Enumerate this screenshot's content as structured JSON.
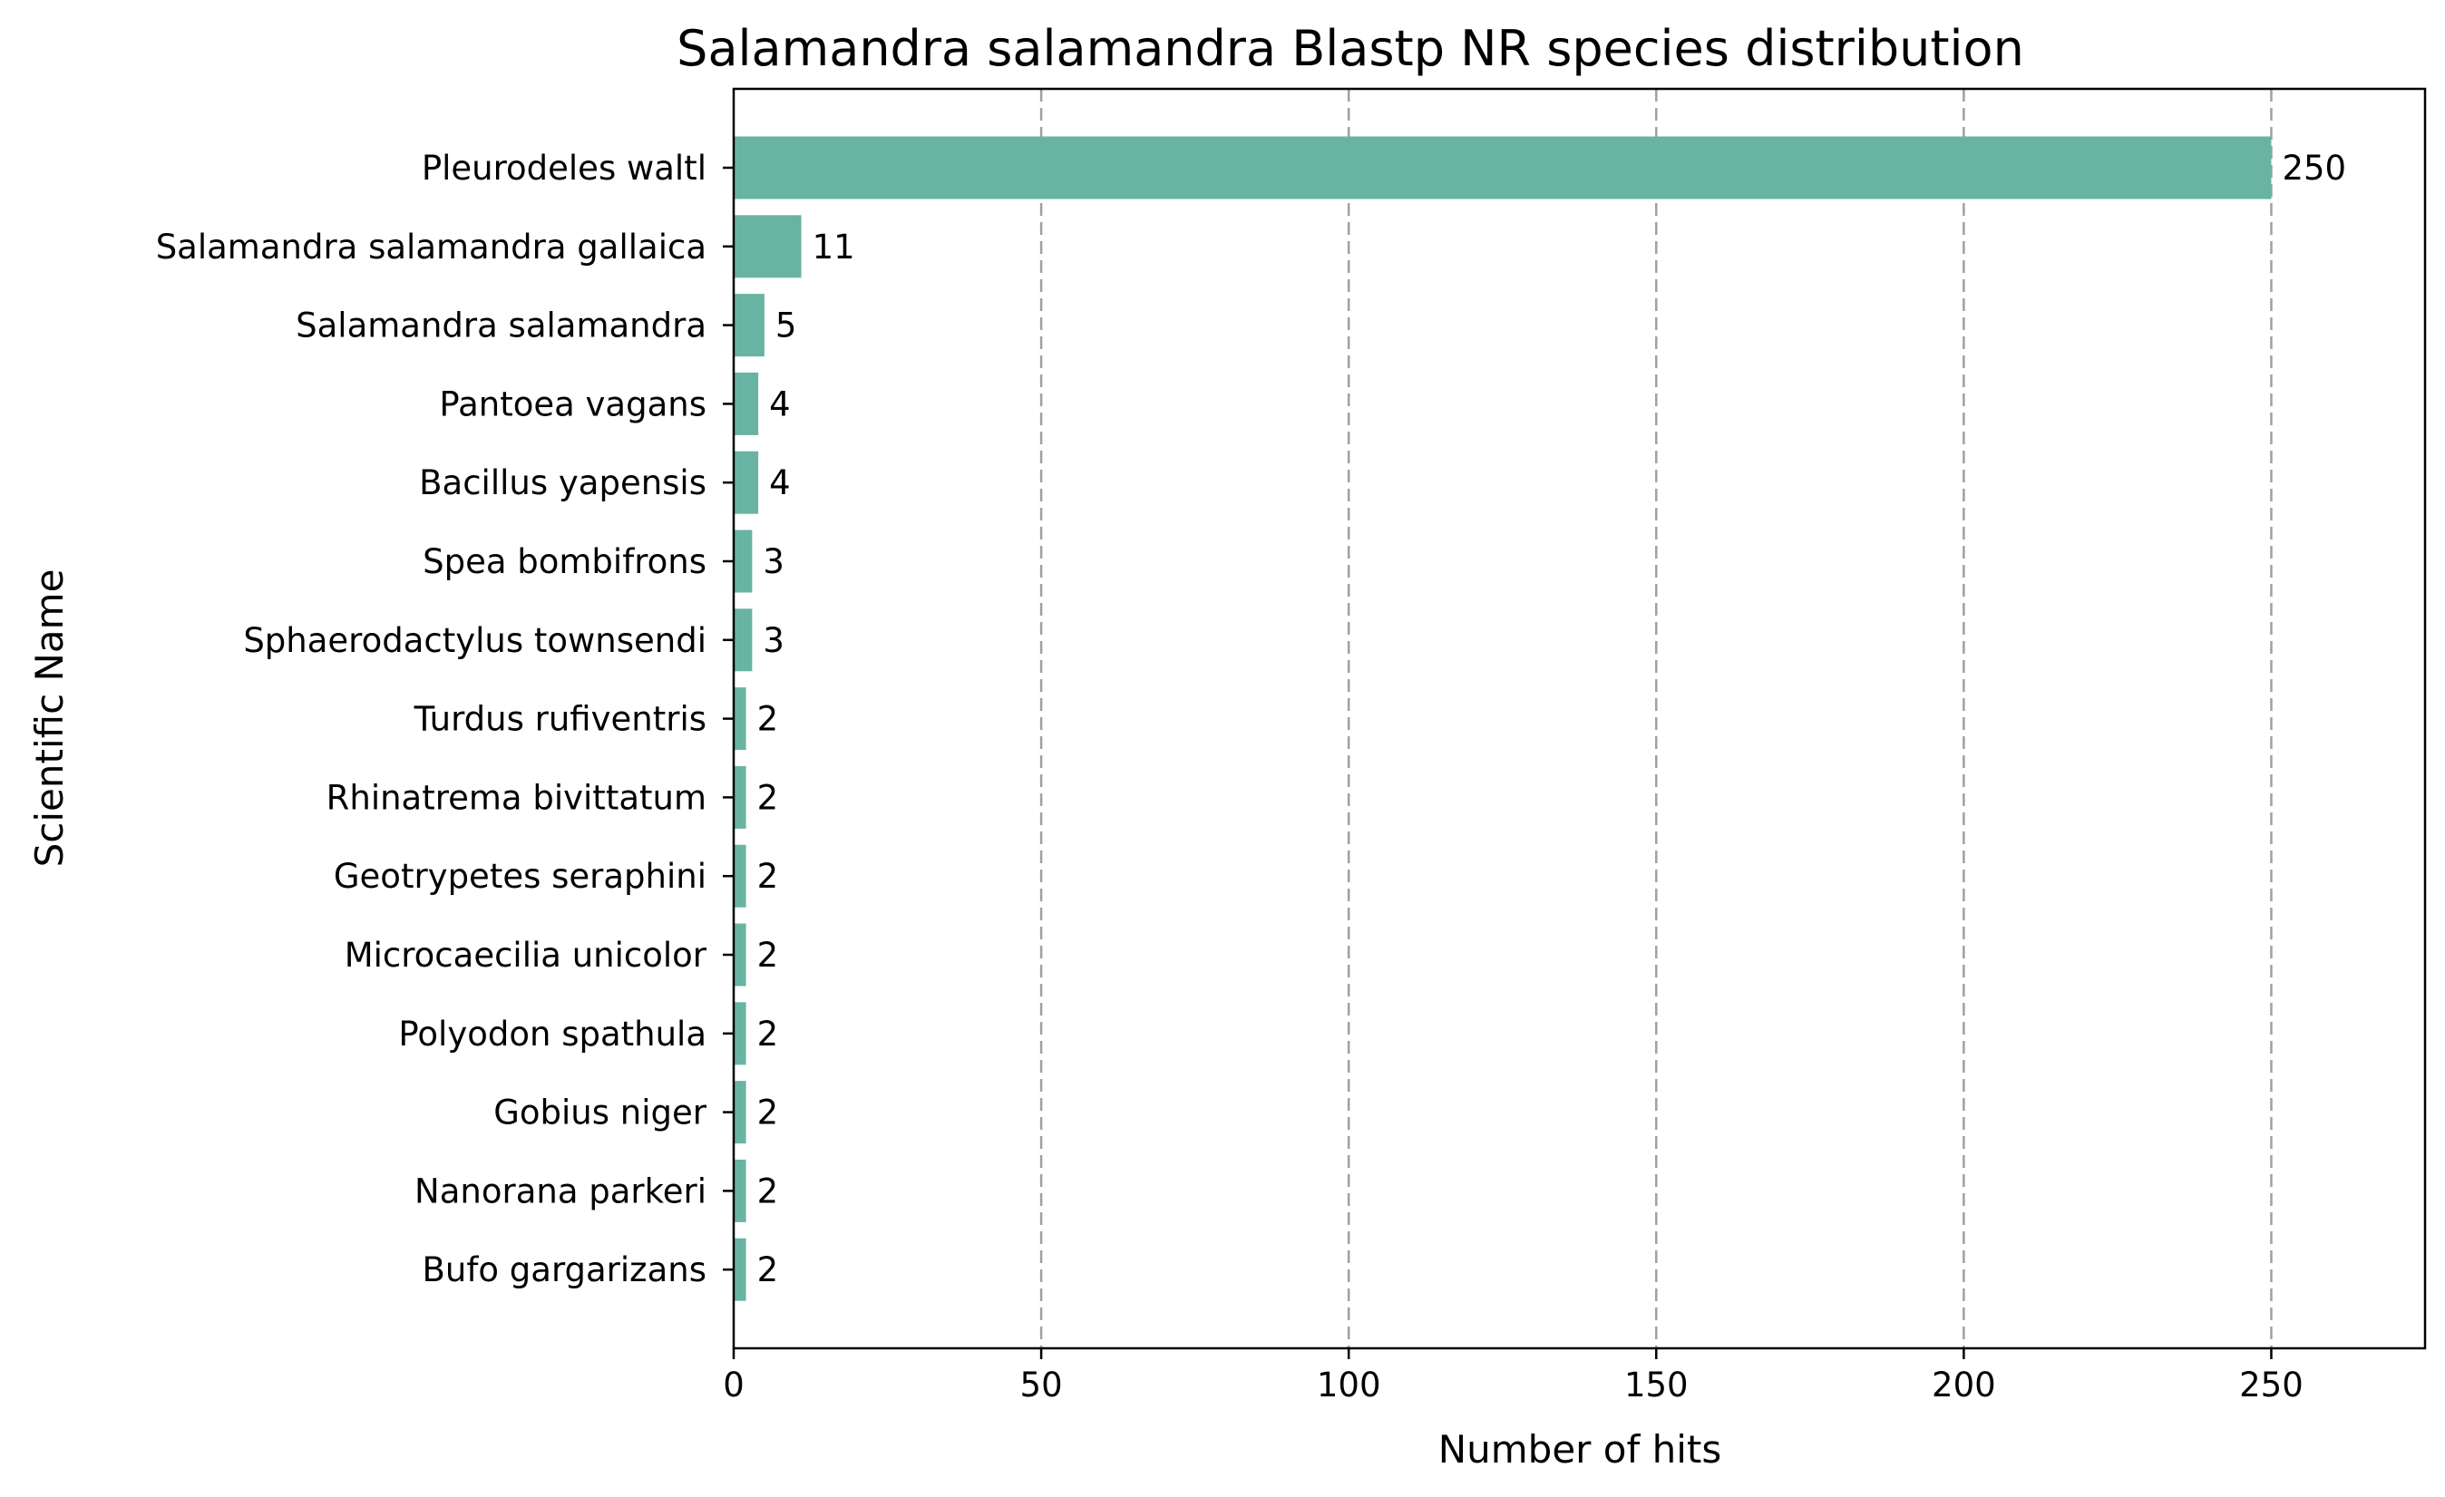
{
  "chart_data": {
    "type": "bar",
    "orientation": "horizontal",
    "title": "Salamandra salamandra Blastp NR species distribution",
    "xlabel": "Number of hits",
    "ylabel": "Scientific Name",
    "xlim": [
      0,
      275
    ],
    "xticks": [
      0,
      50,
      100,
      150,
      200,
      250
    ],
    "grid": "x-dashed",
    "bar_color": "#69b3a2",
    "categories": [
      "Pleurodeles waltl",
      "Salamandra salamandra gallaica",
      "Salamandra salamandra",
      "Pantoea vagans",
      "Bacillus yapensis",
      "Spea bombifrons",
      "Sphaerodactylus townsendi",
      "Turdus rufiventris",
      "Rhinatrema bivittatum",
      "Geotrypetes seraphini",
      "Microcaecilia unicolor",
      "Polyodon spathula",
      "Gobius niger",
      "Nanorana parkeri",
      "Bufo gargarizans"
    ],
    "values": [
      250,
      11,
      5,
      4,
      4,
      3,
      3,
      2,
      2,
      2,
      2,
      2,
      2,
      2,
      2
    ]
  }
}
